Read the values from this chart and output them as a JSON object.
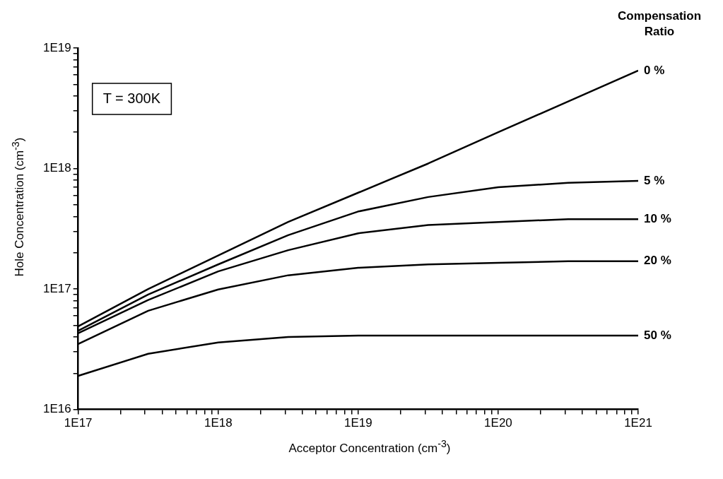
{
  "chart_data": {
    "type": "line",
    "xlabel": "Acceptor Concentration (cm$^{-3}$)",
    "ylabel": "Hole Concentration (cm$^{-3}$)",
    "legend_title": "Compensation Ratio",
    "annotations": [
      "T = 300K"
    ],
    "log": "xy",
    "grid": false,
    "legend": false,
    "marker": "none",
    "line_style": "solid",
    "x": [
      1e+17,
      3.16e+17,
      1e+18,
      3.16e+18,
      1e+19,
      3.16e+19,
      1e+20,
      3.16e+20,
      1e+21
    ],
    "series": [
      {
        "name": "0 %",
        "color": "#000000",
        "values": [
          4.9e+16,
          1e+17,
          1.9e+17,
          3.6e+17,
          6.3e+17,
          1.1e+18,
          2e+18,
          3.6e+18,
          6.5e+18
        ]
      },
      {
        "name": "5 %",
        "color": "#000000",
        "values": [
          4.5e+16,
          9e+16,
          1.6e+17,
          2.8e+17,
          4.4e+17,
          5.8e+17,
          7e+17,
          7.6e+17,
          7.9e+17
        ]
      },
      {
        "name": "10 %",
        "color": "#000000",
        "values": [
          4.3e+16,
          8.1e+16,
          1.4e+17,
          2.1e+17,
          2.9e+17,
          3.4e+17,
          3.6e+17,
          3.8e+17,
          3.8e+17
        ]
      },
      {
        "name": "20 %",
        "color": "#000000",
        "values": [
          3.5e+16,
          6.6e+16,
          9.9e+16,
          1.3e+17,
          1.5e+17,
          1.6e+17,
          1.65e+17,
          1.7e+17,
          1.7e+17
        ]
      },
      {
        "name": "50 %",
        "color": "#000000",
        "values": [
          1.9e+16,
          2.9e+16,
          3.6e+16,
          4e+16,
          4.1e+16,
          4.1e+16,
          4.1e+16,
          4.1e+16,
          4.1e+16
        ]
      }
    ],
    "xlim": [
      1e+17,
      1e+21
    ],
    "xticks": [
      {
        "value": 1e+17,
        "label": "1E17"
      },
      {
        "value": 2e+17,
        "label": null
      },
      {
        "value": 3e+17,
        "label": null
      },
      {
        "value": 4e+17,
        "label": null
      },
      {
        "value": 5e+17,
        "label": null
      },
      {
        "value": 6e+17,
        "label": null
      },
      {
        "value": 7e+17,
        "label": null
      },
      {
        "value": 8e+17,
        "label": null
      },
      {
        "value": 9e+17,
        "label": null
      },
      {
        "value": 1e+18,
        "label": "1E18"
      },
      {
        "value": 2e+18,
        "label": null
      },
      {
        "value": 3e+18,
        "label": null
      },
      {
        "value": 4e+18,
        "label": null
      },
      {
        "value": 5e+18,
        "label": null
      },
      {
        "value": 6e+18,
        "label": null
      },
      {
        "value": 7e+18,
        "label": null
      },
      {
        "value": 8e+18,
        "label": null
      },
      {
        "value": 9e+18,
        "label": null
      },
      {
        "value": 1e+19,
        "label": "1E19"
      },
      {
        "value": 2e+19,
        "label": null
      },
      {
        "value": 3e+19,
        "label": null
      },
      {
        "value": 4e+19,
        "label": null
      },
      {
        "value": 5e+19,
        "label": null
      },
      {
        "value": 6e+19,
        "label": null
      },
      {
        "value": 7e+19,
        "label": null
      },
      {
        "value": 8e+19,
        "label": null
      },
      {
        "value": 9e+19,
        "label": null
      },
      {
        "value": 1e+20,
        "label": "1E20"
      },
      {
        "value": 2e+20,
        "label": null
      },
      {
        "value": 3e+20,
        "label": null
      },
      {
        "value": 4e+20,
        "label": null
      },
      {
        "value": 5e+20,
        "label": null
      },
      {
        "value": 6e+20,
        "label": null
      },
      {
        "value": 7e+20,
        "label": null
      },
      {
        "value": 8e+20,
        "label": null
      },
      {
        "value": 9e+20,
        "label": null
      },
      {
        "value": 1e+21,
        "label": "1E21"
      }
    ],
    "ylim": [
      1e+16,
      1e+19
    ],
    "yticks": [
      {
        "value": 1e+16,
        "label": "1E16"
      },
      {
        "value": 2e+16,
        "label": null
      },
      {
        "value": 3e+16,
        "label": null
      },
      {
        "value": 4e+16,
        "label": null
      },
      {
        "value": 5e+16,
        "label": null
      },
      {
        "value": 6e+16,
        "label": null
      },
      {
        "value": 7e+16,
        "label": null
      },
      {
        "value": 8e+16,
        "label": null
      },
      {
        "value": 9e+16,
        "label": null
      },
      {
        "value": 1e+17,
        "label": "1E17"
      },
      {
        "value": 2e+17,
        "label": null
      },
      {
        "value": 3e+17,
        "label": null
      },
      {
        "value": 4e+17,
        "label": null
      },
      {
        "value": 5e+17,
        "label": null
      },
      {
        "value": 6e+17,
        "label": null
      },
      {
        "value": 7e+17,
        "label": null
      },
      {
        "value": 8e+17,
        "label": null
      },
      {
        "value": 9e+17,
        "label": null
      },
      {
        "value": 1e+18,
        "label": "1E18"
      },
      {
        "value": 2e+18,
        "label": null
      },
      {
        "value": 3e+18,
        "label": null
      },
      {
        "value": 4e+18,
        "label": null
      },
      {
        "value": 5e+18,
        "label": null
      },
      {
        "value": 6e+18,
        "label": null
      },
      {
        "value": 7e+18,
        "label": null
      },
      {
        "value": 8e+18,
        "label": null
      },
      {
        "value": 9e+18,
        "label": null
      },
      {
        "value": 1e+19,
        "label": "1E19"
      }
    ]
  }
}
